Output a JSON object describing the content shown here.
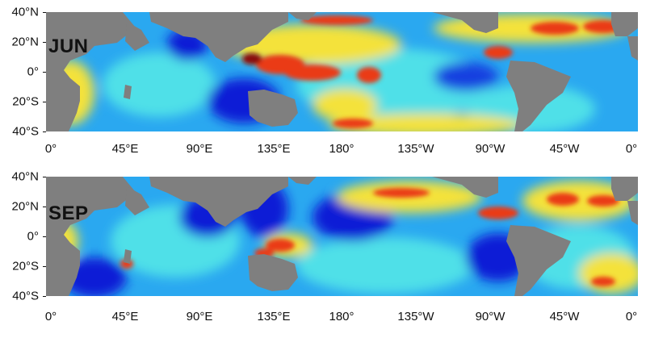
{
  "panels": [
    {
      "month": "JUN",
      "lat_labels": [
        "40°N",
        "20°N",
        "0°",
        "20°S",
        "40°S"
      ],
      "lon_labels": [
        "0°",
        "45°E",
        "90°E",
        "135°E",
        "180°",
        "135°W",
        "90°W",
        "45°W",
        "0°"
      ]
    },
    {
      "month": "SEP",
      "lat_labels": [
        "40°N",
        "20°N",
        "0°",
        "20°S",
        "40°S"
      ],
      "lon_labels": [
        "0°",
        "45°E",
        "90°E",
        "135°E",
        "180°",
        "135°W",
        "90°W",
        "45°W",
        "0°"
      ]
    }
  ],
  "colors": {
    "land": "#7f7f7f",
    "ocean_low": "#0a1fd6",
    "ocean_mid": "#2aa8f0",
    "ocean_cyan": "#4fe0e8",
    "ocean_high": "#f4e23a",
    "ocean_very_high": "#ea3b12",
    "ocean_max": "#8a0e0a"
  }
}
